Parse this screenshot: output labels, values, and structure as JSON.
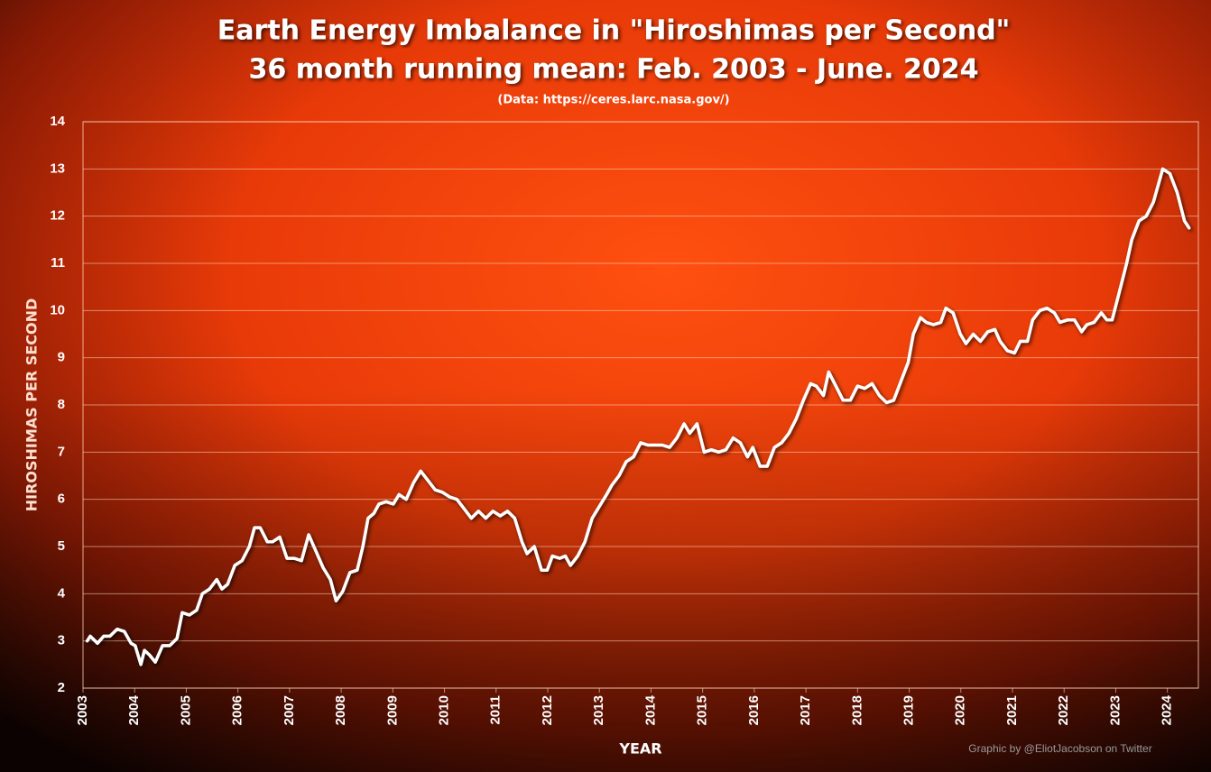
{
  "chart_data": {
    "type": "line",
    "title": "Earth Energy Imbalance in \"Hiroshimas per Second\"",
    "subtitle": "36 month running mean: Feb. 2003 - June. 2024",
    "source": "(Data: https://ceres.larc.nasa.gov/)",
    "x_label": "YEAR",
    "y_label": "HIROSHIMAS PER SECOND",
    "credit": "Graphic by @EliotJacobson on Twitter",
    "color": "#ffffff",
    "grid": true,
    "xlim": [
      2003,
      2024.6
    ],
    "ylim": [
      2,
      14
    ],
    "xticks": [
      2003,
      2004,
      2005,
      2006,
      2007,
      2008,
      2009,
      2010,
      2011,
      2012,
      2013,
      2014,
      2015,
      2016,
      2017,
      2018,
      2019,
      2020,
      2021,
      2022,
      2023,
      2024
    ],
    "yticks": [
      2,
      3,
      4,
      5,
      6,
      7,
      8,
      9,
      10,
      11,
      12,
      13,
      14
    ],
    "x": [
      2003.08,
      2003.14,
      2003.28,
      2003.4,
      2003.52,
      2003.66,
      2003.8,
      2003.93,
      2004.01,
      2004.12,
      2004.19,
      2004.29,
      2004.4,
      2004.54,
      2004.68,
      2004.82,
      2004.92,
      2005.06,
      2005.2,
      2005.31,
      2005.45,
      2005.59,
      2005.69,
      2005.8,
      2005.94,
      2006.08,
      2006.22,
      2006.32,
      2006.43,
      2006.57,
      2006.67,
      2006.81,
      2006.95,
      2007.09,
      2007.23,
      2007.37,
      2007.51,
      2007.65,
      2007.79,
      2007.9,
      2008.03,
      2008.17,
      2008.31,
      2008.42,
      2008.52,
      2008.63,
      2008.73,
      2008.87,
      2009.01,
      2009.12,
      2009.26,
      2009.4,
      2009.54,
      2009.68,
      2009.82,
      2009.96,
      2010.1,
      2010.24,
      2010.38,
      2010.52,
      2010.66,
      2010.8,
      2010.94,
      2011.08,
      2011.22,
      2011.36,
      2011.5,
      2011.6,
      2011.74,
      2011.88,
      2011.99,
      2012.09,
      2012.23,
      2012.34,
      2012.44,
      2012.58,
      2012.72,
      2012.86,
      2013.0,
      2013.14,
      2013.24,
      2013.38,
      2013.52,
      2013.66,
      2013.8,
      2013.94,
      2014.08,
      2014.22,
      2014.36,
      2014.5,
      2014.64,
      2014.75,
      2014.89,
      2015.03,
      2015.17,
      2015.31,
      2015.45,
      2015.59,
      2015.73,
      2015.87,
      2015.97,
      2016.11,
      2016.25,
      2016.39,
      2016.53,
      2016.67,
      2016.81,
      2016.95,
      2017.09,
      2017.2,
      2017.34,
      2017.44,
      2017.58,
      2017.72,
      2017.86,
      2018.0,
      2018.14,
      2018.28,
      2018.42,
      2018.56,
      2018.7,
      2018.84,
      2018.98,
      2019.08,
      2019.22,
      2019.33,
      2019.47,
      2019.61,
      2019.71,
      2019.85,
      2019.99,
      2020.1,
      2020.24,
      2020.38,
      2020.52,
      2020.66,
      2020.76,
      2020.9,
      2021.04,
      2021.15,
      2021.29,
      2021.39,
      2021.53,
      2021.67,
      2021.81,
      2021.92,
      2022.06,
      2022.2,
      2022.34,
      2022.44,
      2022.58,
      2022.72,
      2022.83,
      2022.93,
      2023.07,
      2023.21,
      2023.31,
      2023.45,
      2023.59,
      2023.73,
      2023.91,
      2024.05,
      2024.19,
      2024.33,
      2024.42
    ],
    "values": [
      3.0,
      3.1,
      2.95,
      3.1,
      3.1,
      3.25,
      3.2,
      2.95,
      2.9,
      2.5,
      2.8,
      2.7,
      2.55,
      2.9,
      2.9,
      3.05,
      3.6,
      3.55,
      3.65,
      4.0,
      4.1,
      4.3,
      4.1,
      4.2,
      4.6,
      4.7,
      5.0,
      5.4,
      5.4,
      5.1,
      5.1,
      5.2,
      4.75,
      4.75,
      4.7,
      5.25,
      4.9,
      4.55,
      4.3,
      3.85,
      4.05,
      4.45,
      4.5,
      5.0,
      5.6,
      5.7,
      5.9,
      5.95,
      5.9,
      6.1,
      6.0,
      6.35,
      6.6,
      6.4,
      6.2,
      6.15,
      6.05,
      6.0,
      5.8,
      5.6,
      5.75,
      5.6,
      5.75,
      5.65,
      5.75,
      5.6,
      5.1,
      4.85,
      5.0,
      4.5,
      4.5,
      4.8,
      4.75,
      4.8,
      4.6,
      4.8,
      5.1,
      5.6,
      5.85,
      6.1,
      6.3,
      6.5,
      6.8,
      6.9,
      7.2,
      7.15,
      7.15,
      7.15,
      7.1,
      7.3,
      7.6,
      7.4,
      7.6,
      7.0,
      7.05,
      7.0,
      7.05,
      7.3,
      7.2,
      6.9,
      7.1,
      6.7,
      6.7,
      7.1,
      7.2,
      7.4,
      7.7,
      8.1,
      8.45,
      8.4,
      8.2,
      8.7,
      8.4,
      8.1,
      8.1,
      8.4,
      8.35,
      8.45,
      8.2,
      8.05,
      8.1,
      8.5,
      8.9,
      9.5,
      9.85,
      9.75,
      9.7,
      9.75,
      10.05,
      9.95,
      9.5,
      9.3,
      9.5,
      9.35,
      9.55,
      9.6,
      9.35,
      9.15,
      9.1,
      9.35,
      9.35,
      9.8,
      10.0,
      10.05,
      9.95,
      9.75,
      9.8,
      9.8,
      9.55,
      9.7,
      9.75,
      9.95,
      9.8,
      9.8,
      10.4,
      11.0,
      11.5,
      11.9,
      12.0,
      12.3,
      13.0,
      12.9,
      12.5,
      11.9,
      11.75
    ]
  }
}
